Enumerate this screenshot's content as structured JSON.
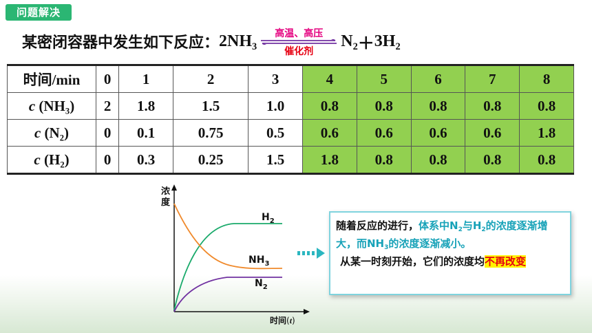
{
  "section_tag": "问题解决",
  "reaction": {
    "lead": "某密闭容器中发生如下反应：",
    "left_coef": "2",
    "left_species": "NH",
    "left_sub": "3",
    "condition_top": "高温、高压",
    "condition_bottom": "催化剂",
    "right_n2": "N",
    "right_n2_sub": "2",
    "plus": "＋",
    "right_h2_coef": "3",
    "right_h2": "H",
    "right_h2_sub": "2"
  },
  "table": {
    "header_label": "时间/min",
    "times": [
      "0",
      "1",
      "2",
      "3",
      "4",
      "5",
      "6",
      "7",
      "8"
    ],
    "rows": [
      {
        "c": "c",
        "species": "NH",
        "sub": "3",
        "values": [
          "2",
          "1.8",
          "1.5",
          "1.0",
          "0.8",
          "0.8",
          "0.8",
          "0.8",
          "0.8"
        ]
      },
      {
        "c": "c",
        "species": "N",
        "sub": "2",
        "values": [
          "0",
          "0.1",
          "0.75",
          "0.5",
          "0.6",
          "0.6",
          "0.6",
          "0.6",
          "1.8"
        ]
      },
      {
        "c": "c",
        "species": "H",
        "sub": "2",
        "values": [
          "0",
          "0.3",
          "0.25",
          "1.5",
          "1.8",
          "0.8",
          "0.8",
          "0.8",
          "0.8"
        ]
      }
    ],
    "highlight_from_index": 4,
    "highlight_color": "#92d050"
  },
  "graph": {
    "y_label_1": "浓",
    "y_label_2": "度",
    "x_label": "时间",
    "x_label_var": "t",
    "curves": [
      {
        "name": "H",
        "sub": "2",
        "color": "#1aaa6b"
      },
      {
        "name": "NH",
        "sub": "3",
        "color": "#f08a2c"
      },
      {
        "name": "N",
        "sub": "2",
        "color": "#7030a0"
      }
    ]
  },
  "explanation": {
    "p1_a": "随着反应的进行，",
    "p1_b": "体系中N",
    "p1_b_sub": "2",
    "p1_c": "与H",
    "p1_c_sub": "2",
    "p1_d": "的浓度逐渐增大，而NH",
    "p1_d_sub": "3",
    "p1_e": "的浓度逐渐减小。",
    "p2_a": "从某一时刻开始，它们的浓度均",
    "p2_b": "不再改变"
  },
  "colors": {
    "tag": "#2bb673",
    "teal_text": "#17a2b8",
    "red_text": "#e60012",
    "box_border": "#7fd3de",
    "pointer": "#2bb6c0"
  }
}
